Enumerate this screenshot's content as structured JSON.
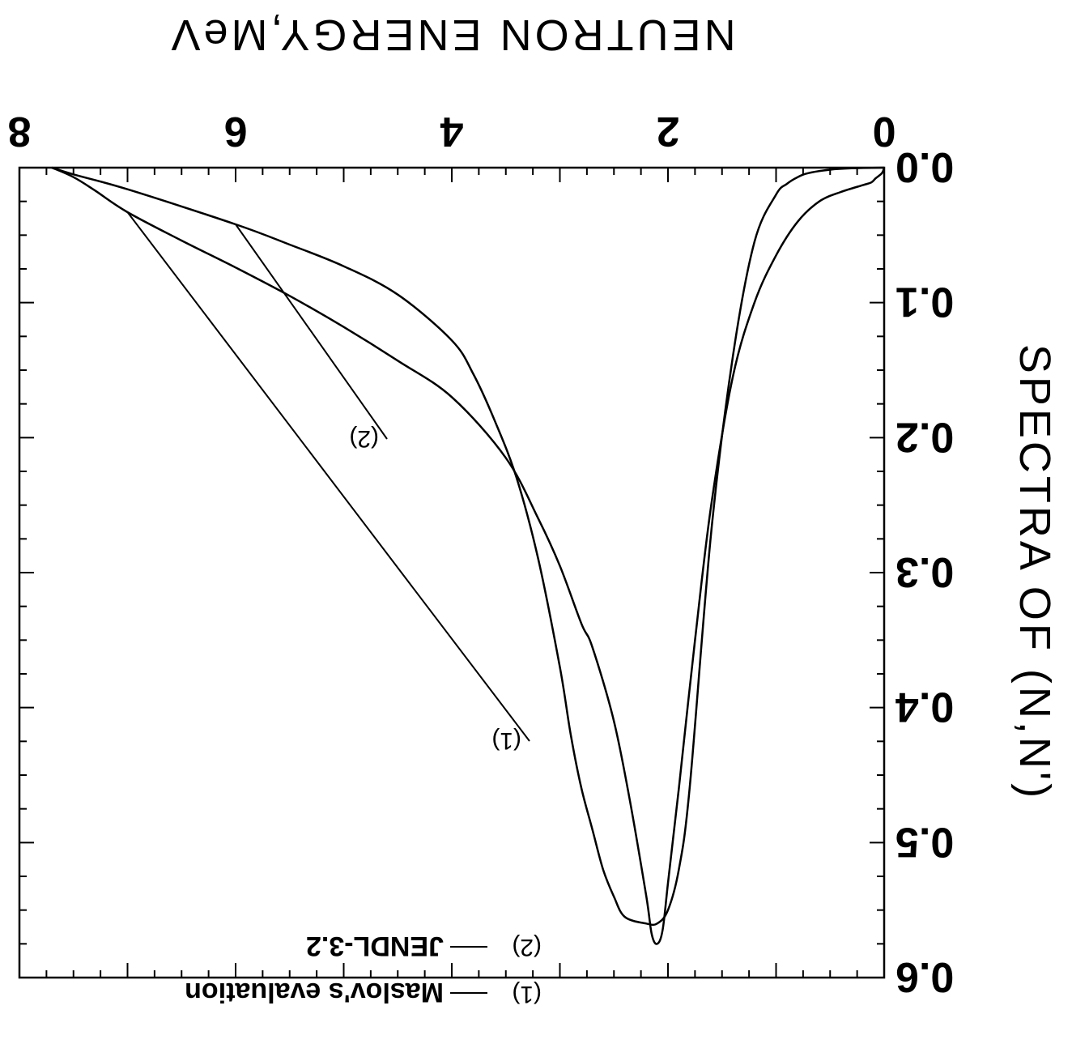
{
  "chart_data": {
    "type": "line",
    "orientation": "rotated-180",
    "title": "",
    "xlabel": "NEUTRON ENERGY,MeV",
    "ylabel": "SPECTRA OF (N,N')",
    "xlim": [
      0,
      8
    ],
    "ylim": [
      0,
      0.6
    ],
    "x_ticks": [
      "0",
      "2",
      "4",
      "6",
      "8"
    ],
    "y_ticks": [
      "0.0",
      "0.1",
      "0.2",
      "0.3",
      "0.4",
      "0.5",
      "0.6"
    ],
    "grid": false,
    "legend_position": "bottom-right",
    "legend": [
      {
        "marker": "(1)",
        "name": "Maslov's evaluation"
      },
      {
        "marker": "(2)",
        "name": "JENDL-3.2"
      }
    ],
    "series": [
      {
        "name": "Maslov's evaluation",
        "label": "(1)",
        "x": [
          0.0,
          0.02,
          0.08,
          0.12,
          0.2,
          0.4,
          0.6,
          0.8,
          1.0,
          1.2,
          1.4,
          1.6,
          1.75,
          1.9,
          2.0,
          2.05,
          2.1,
          2.15,
          2.2,
          2.35,
          2.5,
          2.7,
          2.8,
          3.0,
          3.2,
          3.5,
          4.0,
          4.5,
          5.0,
          5.5,
          6.0,
          6.5,
          7.0,
          7.3,
          7.5,
          7.7
        ],
        "y": [
          0.0,
          0.004,
          0.008,
          0.011,
          0.013,
          0.018,
          0.025,
          0.04,
          0.065,
          0.1,
          0.155,
          0.25,
          0.35,
          0.46,
          0.53,
          0.565,
          0.575,
          0.568,
          0.54,
          0.47,
          0.41,
          0.355,
          0.338,
          0.295,
          0.26,
          0.215,
          0.17,
          0.143,
          0.118,
          0.095,
          0.074,
          0.054,
          0.033,
          0.017,
          0.007,
          0.0
        ]
      },
      {
        "name": "JENDL-3.2",
        "label": "(2)",
        "x": [
          0.0,
          0.3,
          0.5,
          0.7,
          0.8,
          0.9,
          1.0,
          1.2,
          1.4,
          1.6,
          1.8,
          1.9,
          2.0,
          2.1,
          2.2,
          2.4,
          2.5,
          2.6,
          2.7,
          2.8,
          2.9,
          3.0,
          3.2,
          3.4,
          3.6,
          3.8,
          4.0,
          4.5,
          5.0,
          5.5,
          6.0,
          7.0,
          7.5,
          7.7
        ],
        "y": [
          0.0,
          0.0005,
          0.0015,
          0.004,
          0.007,
          0.012,
          0.02,
          0.055,
          0.14,
          0.27,
          0.46,
          0.52,
          0.55,
          0.56,
          0.56,
          0.555,
          0.54,
          0.52,
          0.49,
          0.46,
          0.42,
          0.37,
          0.29,
          0.23,
          0.188,
          0.153,
          0.128,
          0.094,
          0.073,
          0.057,
          0.042,
          0.016,
          0.005,
          0.0
        ]
      }
    ]
  }
}
